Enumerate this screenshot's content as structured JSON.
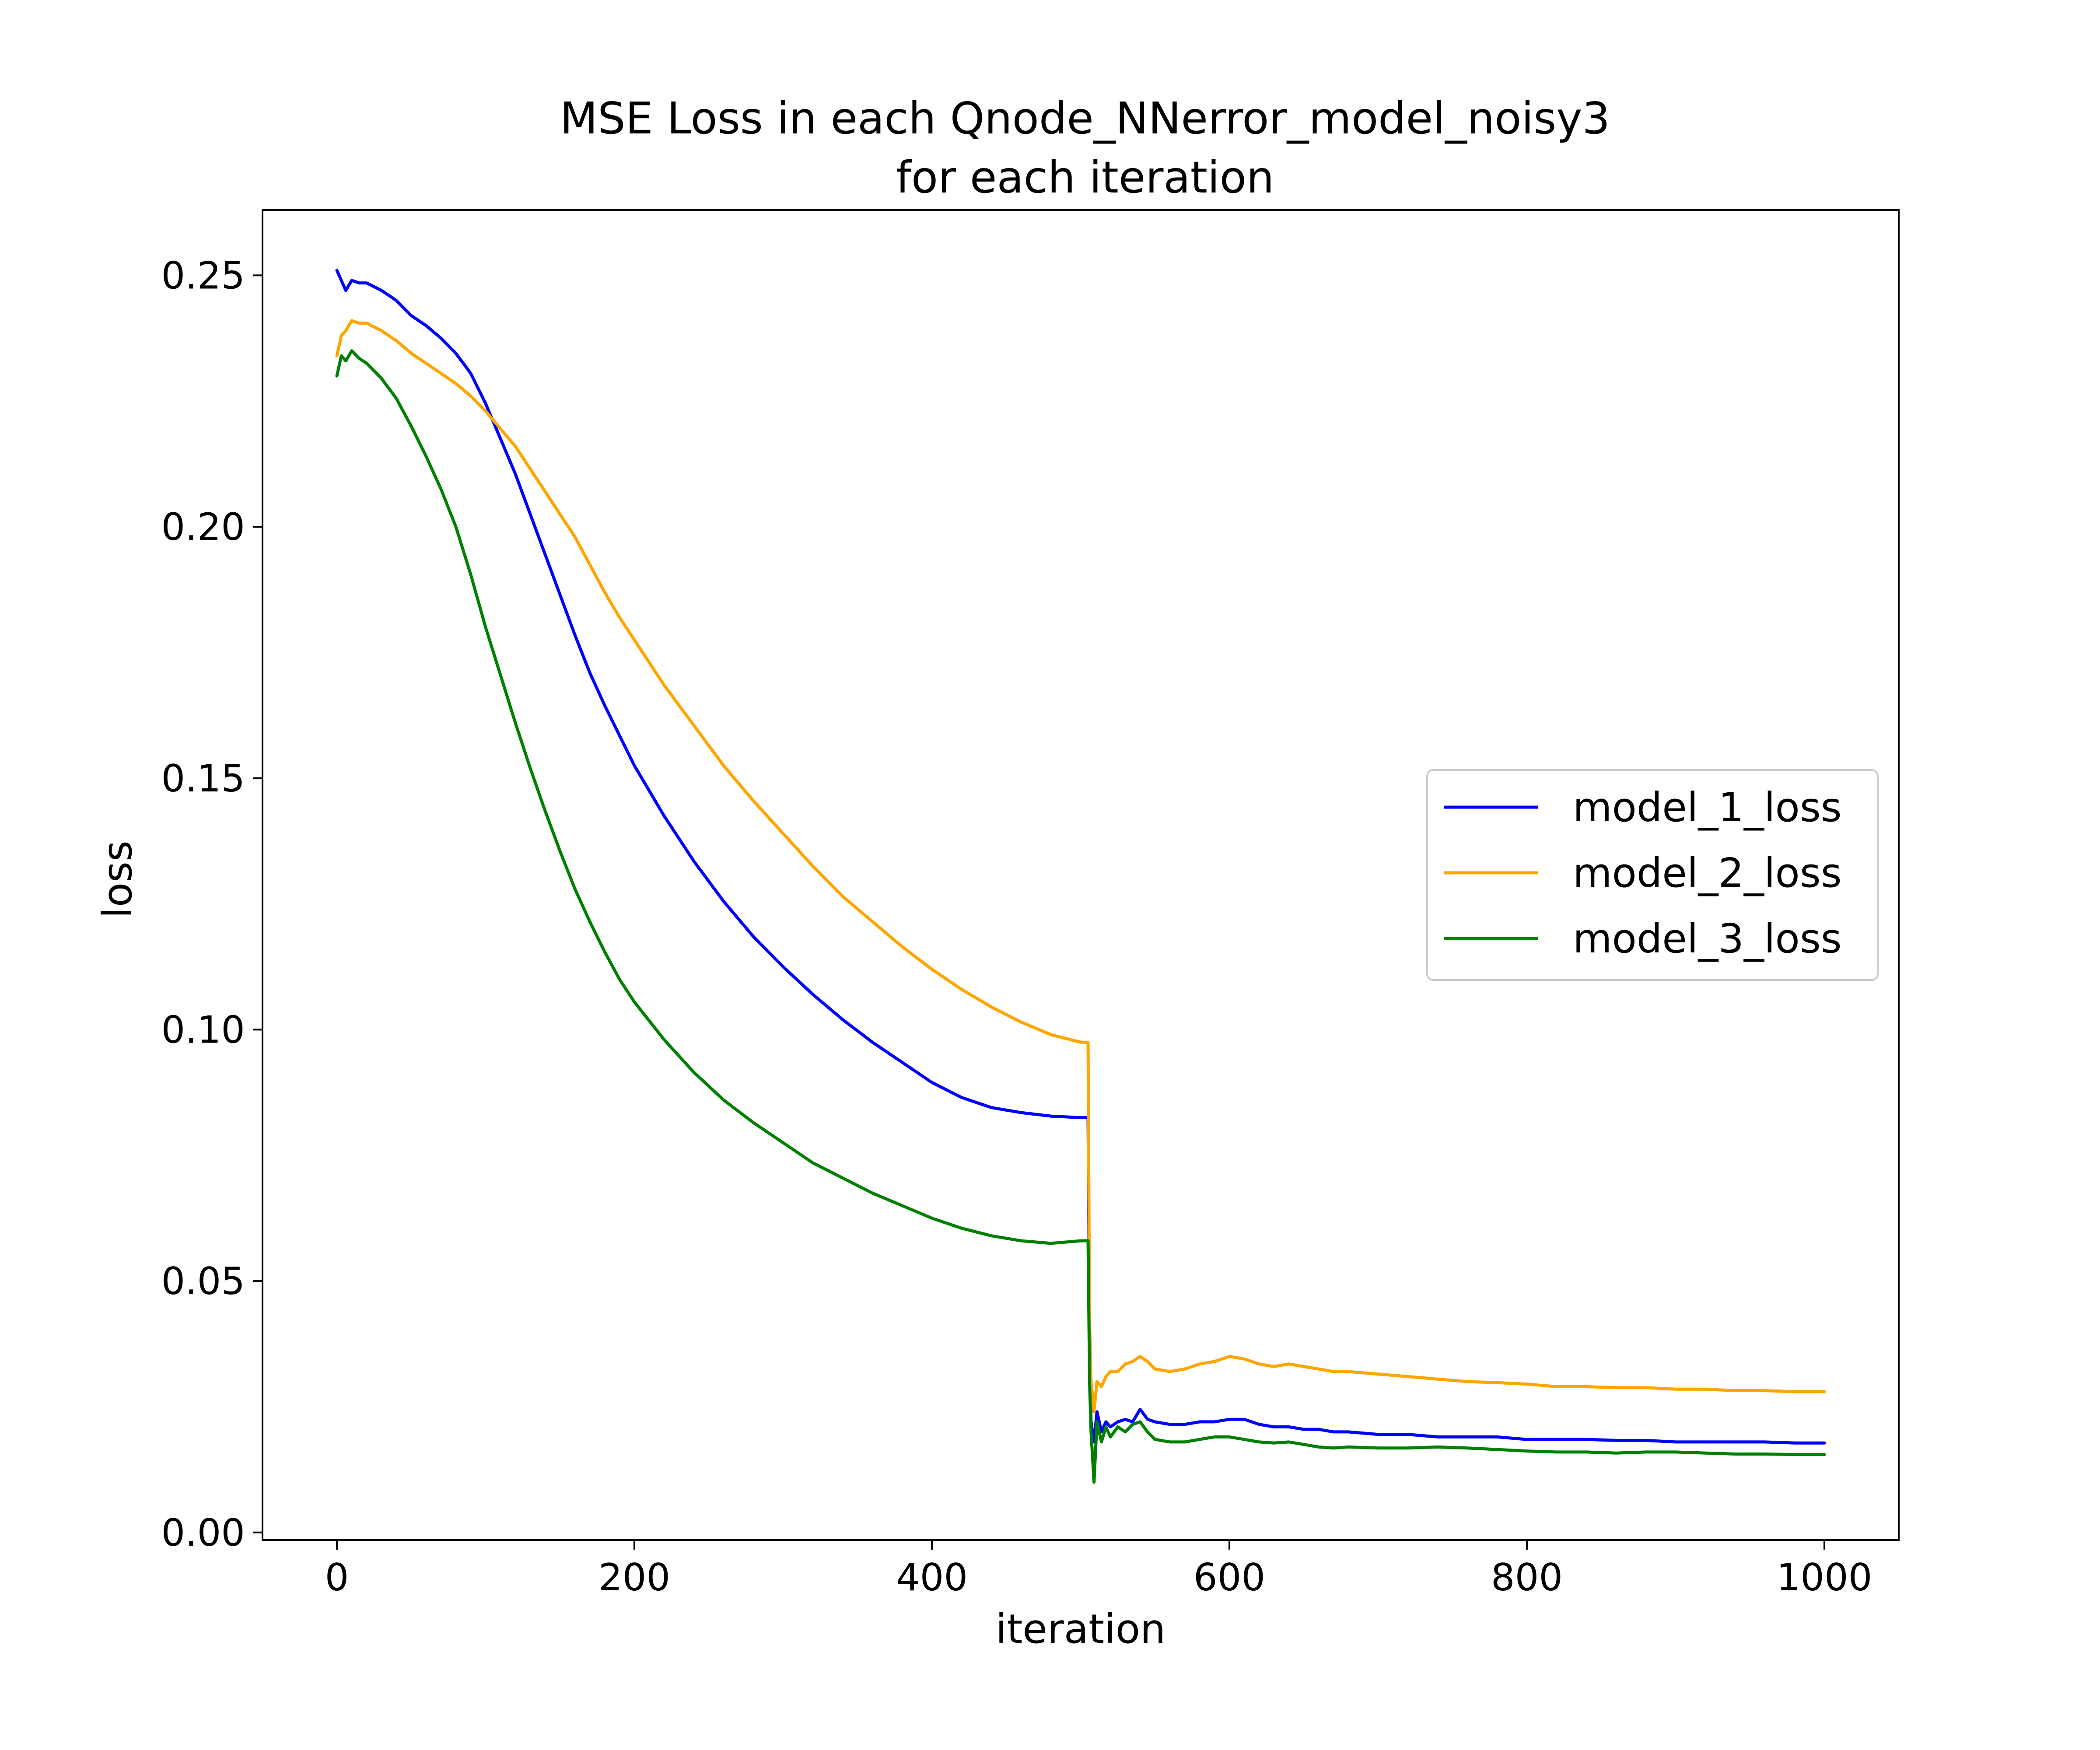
{
  "chart_data": {
    "type": "line",
    "title": [
      "MSE Loss in each Qnode_NNerror_model_noisy3",
      "for each iteration"
    ],
    "xlabel": "iteration",
    "ylabel": "loss",
    "xlim": [
      -50,
      1050
    ],
    "ylim": [
      -0.0015,
      0.263
    ],
    "x_ticks": [
      {
        "value": 0,
        "label": "0"
      },
      {
        "value": 200,
        "label": "200"
      },
      {
        "value": 400,
        "label": "400"
      },
      {
        "value": 600,
        "label": "600"
      },
      {
        "value": 800,
        "label": "800"
      },
      {
        "value": 1000,
        "label": "1000"
      }
    ],
    "y_ticks": [
      {
        "value": 0.0,
        "label": "0.00"
      },
      {
        "value": 0.05,
        "label": "0.05"
      },
      {
        "value": 0.1,
        "label": "0.10"
      },
      {
        "value": 0.15,
        "label": "0.15"
      },
      {
        "value": 0.2,
        "label": "0.20"
      },
      {
        "value": 0.25,
        "label": "0.25"
      }
    ],
    "grid": false,
    "legend": "center-right",
    "series": [
      {
        "name": "model_1_loss",
        "color": "#0000ff",
        "points": [
          [
            0,
            0.251
          ],
          [
            3,
            0.249
          ],
          [
            6,
            0.247
          ],
          [
            10,
            0.249
          ],
          [
            15,
            0.2485
          ],
          [
            20,
            0.2485
          ],
          [
            30,
            0.247
          ],
          [
            40,
            0.245
          ],
          [
            50,
            0.242
          ],
          [
            60,
            0.24
          ],
          [
            70,
            0.2375
          ],
          [
            80,
            0.2345
          ],
          [
            90,
            0.2305
          ],
          [
            100,
            0.2245
          ],
          [
            110,
            0.2175
          ],
          [
            120,
            0.2105
          ],
          [
            130,
            0.2025
          ],
          [
            140,
            0.1945
          ],
          [
            150,
            0.1865
          ],
          [
            160,
            0.1785
          ],
          [
            170,
            0.171
          ],
          [
            180,
            0.1645
          ],
          [
            190,
            0.1585
          ],
          [
            200,
            0.1525
          ],
          [
            220,
            0.1425
          ],
          [
            240,
            0.1335
          ],
          [
            260,
            0.1255
          ],
          [
            280,
            0.1185
          ],
          [
            300,
            0.1125
          ],
          [
            320,
            0.107
          ],
          [
            340,
            0.102
          ],
          [
            360,
            0.0975
          ],
          [
            380,
            0.0935
          ],
          [
            400,
            0.0895
          ],
          [
            420,
            0.0865
          ],
          [
            440,
            0.0845
          ],
          [
            460,
            0.0835
          ],
          [
            480,
            0.0828
          ],
          [
            500,
            0.0825
          ],
          [
            505,
            0.0825
          ],
          [
            506,
            0.04
          ],
          [
            507,
            0.022
          ],
          [
            509,
            0.018
          ],
          [
            511,
            0.024
          ],
          [
            514,
            0.02
          ],
          [
            517,
            0.022
          ],
          [
            520,
            0.021
          ],
          [
            525,
            0.022
          ],
          [
            530,
            0.0225
          ],
          [
            535,
            0.022
          ],
          [
            540,
            0.0245
          ],
          [
            545,
            0.0225
          ],
          [
            550,
            0.022
          ],
          [
            560,
            0.0215
          ],
          [
            570,
            0.0215
          ],
          [
            580,
            0.022
          ],
          [
            590,
            0.022
          ],
          [
            600,
            0.0225
          ],
          [
            610,
            0.0225
          ],
          [
            620,
            0.0215
          ],
          [
            630,
            0.021
          ],
          [
            640,
            0.021
          ],
          [
            650,
            0.0205
          ],
          [
            660,
            0.0205
          ],
          [
            670,
            0.02
          ],
          [
            680,
            0.02
          ],
          [
            700,
            0.0195
          ],
          [
            720,
            0.0195
          ],
          [
            740,
            0.019
          ],
          [
            760,
            0.019
          ],
          [
            780,
            0.019
          ],
          [
            800,
            0.0185
          ],
          [
            820,
            0.0185
          ],
          [
            840,
            0.0185
          ],
          [
            860,
            0.0183
          ],
          [
            880,
            0.0183
          ],
          [
            900,
            0.018
          ],
          [
            920,
            0.018
          ],
          [
            940,
            0.018
          ],
          [
            960,
            0.018
          ],
          [
            980,
            0.0178
          ],
          [
            1000,
            0.0178
          ]
        ]
      },
      {
        "name": "model_2_loss",
        "color": "#ffa500",
        "points": [
          [
            0,
            0.234
          ],
          [
            3,
            0.238
          ],
          [
            6,
            0.239
          ],
          [
            10,
            0.241
          ],
          [
            15,
            0.2405
          ],
          [
            20,
            0.2405
          ],
          [
            30,
            0.239
          ],
          [
            40,
            0.237
          ],
          [
            50,
            0.2345
          ],
          [
            60,
            0.2325
          ],
          [
            70,
            0.2305
          ],
          [
            80,
            0.2285
          ],
          [
            90,
            0.226
          ],
          [
            100,
            0.223
          ],
          [
            110,
            0.2195
          ],
          [
            120,
            0.216
          ],
          [
            130,
            0.2115
          ],
          [
            140,
            0.207
          ],
          [
            150,
            0.2025
          ],
          [
            160,
            0.198
          ],
          [
            170,
            0.1925
          ],
          [
            180,
            0.187
          ],
          [
            190,
            0.182
          ],
          [
            200,
            0.1775
          ],
          [
            220,
            0.1685
          ],
          [
            240,
            0.1605
          ],
          [
            260,
            0.1525
          ],
          [
            280,
            0.1455
          ],
          [
            300,
            0.139
          ],
          [
            320,
            0.1325
          ],
          [
            340,
            0.1265
          ],
          [
            360,
            0.1215
          ],
          [
            380,
            0.1165
          ],
          [
            400,
            0.112
          ],
          [
            420,
            0.108
          ],
          [
            440,
            0.1045
          ],
          [
            460,
            0.1015
          ],
          [
            480,
            0.099
          ],
          [
            500,
            0.0975
          ],
          [
            505,
            0.0975
          ],
          [
            506,
            0.042
          ],
          [
            507,
            0.03
          ],
          [
            509,
            0.024
          ],
          [
            511,
            0.03
          ],
          [
            514,
            0.029
          ],
          [
            517,
            0.031
          ],
          [
            520,
            0.032
          ],
          [
            525,
            0.032
          ],
          [
            530,
            0.0335
          ],
          [
            535,
            0.034
          ],
          [
            540,
            0.035
          ],
          [
            545,
            0.034
          ],
          [
            550,
            0.0325
          ],
          [
            560,
            0.032
          ],
          [
            570,
            0.0325
          ],
          [
            580,
            0.0335
          ],
          [
            590,
            0.034
          ],
          [
            600,
            0.035
          ],
          [
            610,
            0.0345
          ],
          [
            620,
            0.0335
          ],
          [
            630,
            0.033
          ],
          [
            640,
            0.0335
          ],
          [
            650,
            0.033
          ],
          [
            660,
            0.0325
          ],
          [
            670,
            0.032
          ],
          [
            680,
            0.032
          ],
          [
            700,
            0.0315
          ],
          [
            720,
            0.031
          ],
          [
            740,
            0.0305
          ],
          [
            760,
            0.03
          ],
          [
            780,
            0.0298
          ],
          [
            800,
            0.0295
          ],
          [
            820,
            0.029
          ],
          [
            840,
            0.029
          ],
          [
            860,
            0.0288
          ],
          [
            880,
            0.0288
          ],
          [
            900,
            0.0285
          ],
          [
            920,
            0.0285
          ],
          [
            940,
            0.0282
          ],
          [
            960,
            0.0282
          ],
          [
            980,
            0.028
          ],
          [
            1000,
            0.028
          ]
        ]
      },
      {
        "name": "model_3_loss",
        "color": "#008000",
        "points": [
          [
            0,
            0.23
          ],
          [
            3,
            0.234
          ],
          [
            6,
            0.233
          ],
          [
            10,
            0.235
          ],
          [
            15,
            0.2335
          ],
          [
            20,
            0.2325
          ],
          [
            30,
            0.2295
          ],
          [
            40,
            0.2255
          ],
          [
            50,
            0.22
          ],
          [
            60,
            0.214
          ],
          [
            70,
            0.2075
          ],
          [
            80,
            0.2
          ],
          [
            90,
            0.1905
          ],
          [
            100,
            0.18
          ],
          [
            110,
            0.1705
          ],
          [
            120,
            0.161
          ],
          [
            130,
            0.152
          ],
          [
            140,
            0.1435
          ],
          [
            150,
            0.1355
          ],
          [
            160,
            0.128
          ],
          [
            170,
            0.1215
          ],
          [
            180,
            0.1155
          ],
          [
            190,
            0.11
          ],
          [
            200,
            0.1055
          ],
          [
            220,
            0.098
          ],
          [
            240,
            0.0915
          ],
          [
            260,
            0.086
          ],
          [
            280,
            0.0815
          ],
          [
            300,
            0.0775
          ],
          [
            320,
            0.0735
          ],
          [
            340,
            0.0705
          ],
          [
            360,
            0.0675
          ],
          [
            380,
            0.065
          ],
          [
            400,
            0.0625
          ],
          [
            420,
            0.0605
          ],
          [
            440,
            0.059
          ],
          [
            460,
            0.058
          ],
          [
            480,
            0.0575
          ],
          [
            500,
            0.058
          ],
          [
            505,
            0.058
          ],
          [
            506,
            0.03
          ],
          [
            507,
            0.02
          ],
          [
            509,
            0.01
          ],
          [
            511,
            0.022
          ],
          [
            514,
            0.018
          ],
          [
            517,
            0.021
          ],
          [
            520,
            0.019
          ],
          [
            525,
            0.021
          ],
          [
            530,
            0.02
          ],
          [
            535,
            0.0215
          ],
          [
            540,
            0.022
          ],
          [
            545,
            0.02
          ],
          [
            550,
            0.0185
          ],
          [
            560,
            0.018
          ],
          [
            570,
            0.018
          ],
          [
            580,
            0.0185
          ],
          [
            590,
            0.019
          ],
          [
            600,
            0.019
          ],
          [
            610,
            0.0185
          ],
          [
            620,
            0.018
          ],
          [
            630,
            0.0178
          ],
          [
            640,
            0.018
          ],
          [
            650,
            0.0175
          ],
          [
            660,
            0.017
          ],
          [
            670,
            0.0168
          ],
          [
            680,
            0.017
          ],
          [
            700,
            0.0168
          ],
          [
            720,
            0.0168
          ],
          [
            740,
            0.017
          ],
          [
            760,
            0.0168
          ],
          [
            780,
            0.0165
          ],
          [
            800,
            0.0162
          ],
          [
            820,
            0.016
          ],
          [
            840,
            0.016
          ],
          [
            860,
            0.0158
          ],
          [
            880,
            0.016
          ],
          [
            900,
            0.016
          ],
          [
            920,
            0.0158
          ],
          [
            940,
            0.0156
          ],
          [
            960,
            0.0156
          ],
          [
            980,
            0.0155
          ],
          [
            1000,
            0.0155
          ]
        ]
      }
    ]
  }
}
